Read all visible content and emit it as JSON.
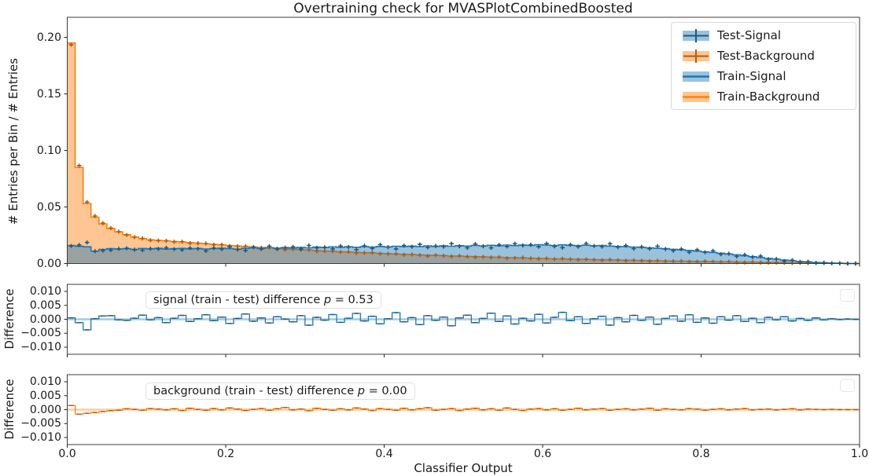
{
  "title": "Overtraining check for MVASPlotCombinedBoosted",
  "colors": {
    "signal": "#1f77b4",
    "signal_fill": "rgba(31,119,180,0.45)",
    "signal_dark": "#1f5a7d",
    "background": "#ff7f0e",
    "background_fill": "rgba(255,127,14,0.45)",
    "background_dark": "#b05c10",
    "zero_signal": "rgba(31,119,180,0.4)",
    "zero_background": "rgba(255,127,14,0.4)",
    "spine": "#3c3c3c",
    "tick": "#262626"
  },
  "legend": {
    "items": [
      {
        "label": "Test-Signal",
        "series": "signal",
        "kind": "test"
      },
      {
        "label": "Test-Background",
        "series": "background",
        "kind": "test"
      },
      {
        "label": "Train-Signal",
        "series": "signal",
        "kind": "train"
      },
      {
        "label": "Train-Background",
        "series": "background",
        "kind": "train"
      }
    ]
  },
  "main_panel": {
    "ylabel": "# Entries per Bin / # Entries",
    "yticks": [
      "0.20",
      "0.15",
      "0.10",
      "0.05",
      "0.00"
    ]
  },
  "signal_panel": {
    "ylabel": "Difference",
    "yticks": [
      "0.010",
      "0.005",
      "0.000",
      "−0.005",
      "−0.010"
    ],
    "annotation": {
      "text": "signal (train - test) difference ",
      "p": "p",
      "value": " = 0.53"
    }
  },
  "background_panel": {
    "ylabel": "Difference",
    "yticks": [
      "0.010",
      "0.005",
      "0.000",
      "−0.005",
      "−0.010"
    ],
    "annotation": {
      "text": "background (train - test) difference ",
      "p": "p",
      "value": " = 0.00"
    }
  },
  "xaxis": {
    "label": "Classifier Output",
    "ticks": [
      "0.0",
      "0.2",
      "0.4",
      "0.6",
      "0.8",
      "1.0"
    ]
  },
  "chart_data": {
    "type": "histogram-step",
    "title": "Overtraining check for MVASPlotCombinedBoosted",
    "xlabel": "Classifier Output",
    "bins": 100,
    "xlim": [
      0,
      1
    ],
    "panels": [
      {
        "name": "main",
        "ylabel": "# Entries per Bin / # Entries",
        "ylim": [
          0,
          0.2175
        ],
        "yticks": [
          0,
          0.05,
          0.1,
          0.15,
          0.2
        ]
      },
      {
        "name": "signal-difference",
        "ylabel": "Difference",
        "ylim": [
          -0.0125,
          0.0125
        ],
        "yticks": [
          0.01,
          0.005,
          0,
          -0.005,
          -0.01
        ],
        "p_value": 0.53
      },
      {
        "name": "background-difference",
        "ylabel": "Difference",
        "ylim": [
          -0.0125,
          0.0125
        ],
        "yticks": [
          0.01,
          0.005,
          0,
          -0.005,
          -0.01
        ],
        "p_value": 0.0
      }
    ],
    "xticks": [
      0,
      0.2,
      0.4,
      0.6,
      0.8,
      1.0
    ],
    "train_signal": [
      0.016,
      0.0152,
      0.0148,
      0.011,
      0.0125,
      0.0132,
      0.0128,
      0.0131,
      0.0126,
      0.0133,
      0.0129,
      0.0135,
      0.0127,
      0.0131,
      0.0134,
      0.0129,
      0.0133,
      0.0128,
      0.0132,
      0.0136,
      0.0131,
      0.0127,
      0.0134,
      0.0138,
      0.0133,
      0.014,
      0.0136,
      0.0141,
      0.0138,
      0.0143,
      0.0139,
      0.0145,
      0.0141,
      0.0147,
      0.0143,
      0.0149,
      0.0144,
      0.015,
      0.0146,
      0.0151,
      0.0147,
      0.0153,
      0.0149,
      0.0154,
      0.015,
      0.0156,
      0.0151,
      0.0157,
      0.0153,
      0.0158,
      0.0154,
      0.016,
      0.0156,
      0.0161,
      0.0157,
      0.0163,
      0.0158,
      0.0164,
      0.016,
      0.0166,
      0.0163,
      0.0159,
      0.0165,
      0.0161,
      0.0158,
      0.0162,
      0.0157,
      0.016,
      0.0154,
      0.0151,
      0.0149,
      0.0146,
      0.0143,
      0.0139,
      0.0135,
      0.0131,
      0.0126,
      0.0121,
      0.0116,
      0.011,
      0.0104,
      0.0098,
      0.0091,
      0.0084,
      0.0077,
      0.0069,
      0.0061,
      0.0053,
      0.0045,
      0.0038,
      0.0031,
      0.0024,
      0.0018,
      0.0013,
      0.0009,
      0.0006,
      0.0004,
      0.0002,
      0.0001,
      0.0
    ],
    "train_background": [
      0.195,
      0.085,
      0.053,
      0.041,
      0.035,
      0.031,
      0.028,
      0.0255,
      0.0235,
      0.022,
      0.021,
      0.0205,
      0.02,
      0.0195,
      0.019,
      0.0185,
      0.018,
      0.0175,
      0.017,
      0.0165,
      0.016,
      0.0155,
      0.015,
      0.0146,
      0.0142,
      0.0138,
      0.0134,
      0.013,
      0.0126,
      0.0122,
      0.0118,
      0.0114,
      0.0111,
      0.0108,
      0.0105,
      0.0102,
      0.0099,
      0.0096,
      0.0093,
      0.009,
      0.0087,
      0.0084,
      0.0082,
      0.0079,
      0.0077,
      0.0074,
      0.0072,
      0.007,
      0.0067,
      0.0065,
      0.0063,
      0.0061,
      0.0059,
      0.0057,
      0.0055,
      0.0053,
      0.0051,
      0.0049,
      0.0047,
      0.0046,
      0.0044,
      0.0042,
      0.0041,
      0.0039,
      0.0038,
      0.0036,
      0.0035,
      0.0033,
      0.0032,
      0.0031,
      0.0029,
      0.0028,
      0.0027,
      0.0026,
      0.0024,
      0.0023,
      0.0022,
      0.0021,
      0.002,
      0.0019,
      0.0018,
      0.0017,
      0.0016,
      0.0015,
      0.0014,
      0.0013,
      0.0012,
      0.0011,
      0.001,
      0.0009,
      0.0008,
      0.0007,
      0.0006,
      0.0005,
      0.0005,
      0.0004,
      0.0003,
      0.0002,
      0.0,
      0.0
    ],
    "diff_signal": [
      0.0005,
      -0.0012,
      -0.0038,
      0.0002,
      0.0012,
      0.0013,
      -0.0002,
      -0.0004,
      0.0004,
      0.0015,
      -0.0002,
      0.0006,
      -0.0012,
      0.0004,
      0.0014,
      -0.0008,
      0.0002,
      0.0016,
      -0.0005,
      0.0008,
      -0.0015,
      0.0003,
      0.0019,
      -0.0007,
      0.0005,
      -0.0013,
      0.0009,
      0.0001,
      -0.0009,
      0.0013,
      -0.0021,
      0.0007,
      -0.0003,
      0.0017,
      -0.0011,
      0.0004,
      0.0021,
      -0.0006,
      0.0011,
      -0.0016,
      0.0002,
      0.0024,
      -0.0009,
      0.0006,
      -0.0019,
      0.0013,
      -0.0004,
      0.0008,
      -0.0023,
      0.0005,
      0.0015,
      -0.0012,
      0.0003,
      0.0022,
      -0.0008,
      0.0012,
      -0.0017,
      0.0004,
      -0.0006,
      0.0018,
      -0.0013,
      0.0007,
      0.0025,
      -0.0005,
      0.0009,
      -0.0015,
      0.0002,
      0.0011,
      -0.0021,
      0.0006,
      -0.0009,
      0.0014,
      -0.0004,
      0.0008,
      -0.0018,
      0.0003,
      0.0012,
      -0.0007,
      0.0016,
      -0.0011,
      0.0005,
      -0.0014,
      0.0009,
      -0.0003,
      0.0013,
      -0.0008,
      0.0004,
      -0.0012,
      0.0007,
      -0.0002,
      0.0009,
      -0.0006,
      0.0003,
      -0.0004,
      0.0005,
      -0.0002,
      0.0002,
      -0.0001,
      0.0001,
      0.0
    ],
    "diff_background": [
      0.0015,
      -0.0016,
      -0.0013,
      -0.001,
      -0.0007,
      -0.0004,
      -0.0002,
      0.0003,
      0.0001,
      -0.0002,
      0.0004,
      0.0002,
      -0.0001,
      0.0003,
      -0.0003,
      0.0005,
      0.0001,
      -0.0002,
      0.0004,
      -0.0001,
      0.0006,
      0.0002,
      -0.0003,
      0.0001,
      0.0004,
      -0.0002,
      0.0003,
      0.0008,
      -0.0001,
      0.0002,
      -0.0004,
      0.0005,
      0.0001,
      -0.0002,
      0.0003,
      -0.0001,
      0.0006,
      0.0002,
      -0.0003,
      0.0004,
      0.0001,
      -0.0002,
      0.0005,
      -0.0001,
      0.0003,
      0.0007,
      -0.0002,
      0.0001,
      0.0004,
      -0.0003,
      0.0002,
      0.0005,
      -0.0001,
      0.0003,
      -0.0002,
      0.0006,
      0.0001,
      -0.0003,
      0.0002,
      0.0004,
      -0.0001,
      0.0003,
      -0.0002,
      0.0001,
      0.0005,
      -0.0001,
      0.0002,
      0.0004,
      -0.0002,
      0.0001,
      0.0003,
      -0.0001,
      0.0002,
      0.0005,
      -0.0002,
      0.0003,
      0.0001,
      -0.0001,
      0.0004,
      0.0002,
      -0.0002,
      0.0001,
      0.0003,
      -0.0001,
      0.0002,
      0.0004,
      -0.0001,
      0.0001,
      0.0002,
      -0.0001,
      0.0001,
      0.0003,
      -0.0001,
      0.0002,
      0.0001,
      0.0,
      0.0001,
      0.0,
      0.0,
      0.0
    ]
  }
}
